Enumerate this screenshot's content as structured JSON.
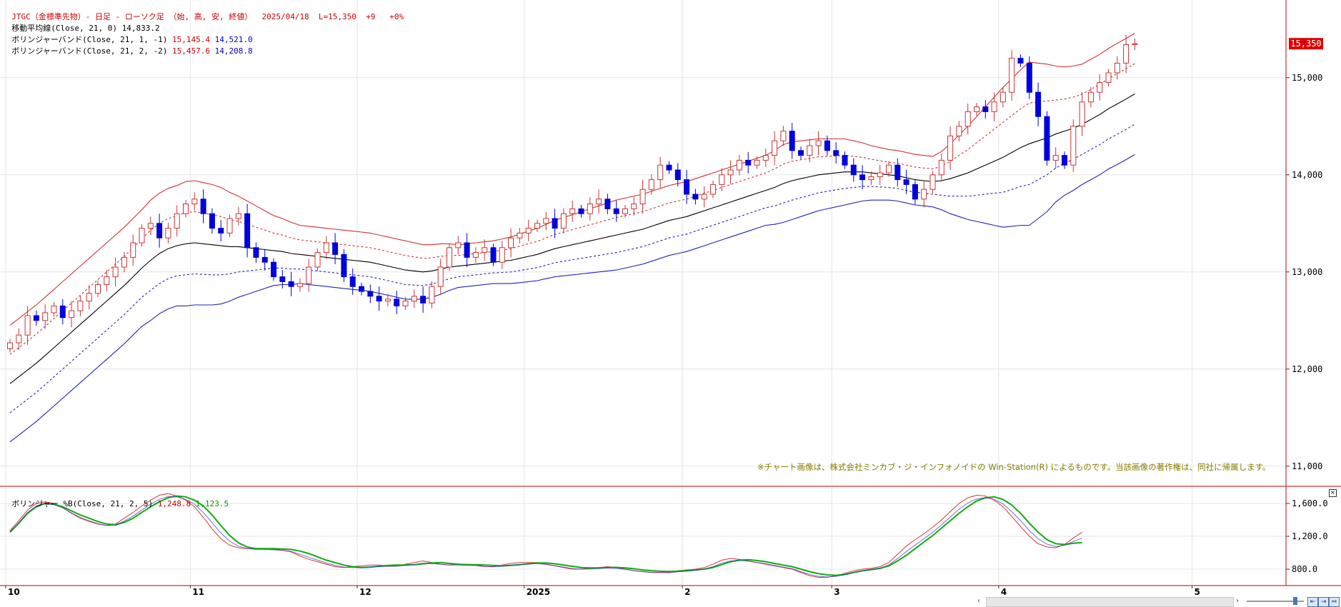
{
  "header": {
    "symbol_line": "JTGC（金標準先物）- 日足 - ローソク足 （始, 高, 安, 終値）  2025/04/18  L=15,350  +9   +0%",
    "ma_label": "移動平均線(Close, 21, 0)",
    "ma_value": "14,833.2",
    "bb1_label": "ボリンジャーバンド(Close, 21, 1, -1)",
    "bb1_upper": "15,145.4",
    "bb1_lower": "14,521.0",
    "bb2_label": "ボリンジャーバンド(Close, 21, 2, -2)",
    "bb2_upper": "15,457.6",
    "bb2_lower": "14,208.8"
  },
  "sub_header": {
    "label": "ボリンジャー %B(Close, 21, 2, 5)",
    "value1": "1,248.8",
    "value2": "1,123.5"
  },
  "notice": "※チャート画像は、株式会社ミンカブ・ジ・インフォノイドの Win-Station(R) によるものです。当該画像の著作権は、同社に帰属します。",
  "last_price_tag": "15,350",
  "colors": {
    "up": "#cc3333",
    "down": "#0000dd",
    "ma": "#000000",
    "band_upper": "#cc3333",
    "band_lower": "#2222bb",
    "sub_red": "#dd3333",
    "sub_blue": "#3333bb",
    "sub_green": "#11aa11",
    "price_tag_bg": "#dd0000"
  },
  "chart_data": [
    {
      "type": "candlestick",
      "title": "",
      "ylim": [
        10800,
        15800
      ],
      "yticks": [
        11000,
        12000,
        13000,
        14000,
        15000
      ],
      "ytick_labels": [
        "11,000",
        "12,000",
        "13,000",
        "14,000",
        "15,000"
      ],
      "x_labels": [
        {
          "label": "10",
          "idx": 0
        },
        {
          "label": "11",
          "idx": 21
        },
        {
          "label": "12",
          "idx": 40
        },
        {
          "label": "2025",
          "idx": 59
        },
        {
          "label": "2",
          "idx": 77
        },
        {
          "label": "3",
          "idx": 94
        },
        {
          "label": "4",
          "idx": 113
        },
        {
          "label": "5",
          "idx": 135
        }
      ],
      "closes": [
        12270,
        12350,
        12550,
        12500,
        12580,
        12650,
        12530,
        12600,
        12700,
        12780,
        12870,
        12950,
        13050,
        13150,
        13300,
        13450,
        13500,
        13350,
        13450,
        13600,
        13700,
        13750,
        13600,
        13450,
        13400,
        13550,
        13600,
        13250,
        13150,
        13100,
        12950,
        12900,
        12850,
        12880,
        13050,
        13200,
        13300,
        13180,
        12950,
        12850,
        12800,
        12750,
        12700,
        12720,
        12650,
        12700,
        12750,
        12680,
        12850,
        13050,
        13250,
        13300,
        13150,
        13200,
        13250,
        13100,
        13250,
        13350,
        13400,
        13450,
        13500,
        13550,
        13450,
        13600,
        13650,
        13600,
        13700,
        13750,
        13650,
        13600,
        13650,
        13700,
        13850,
        13950,
        14100,
        14050,
        13950,
        13800,
        13750,
        13800,
        13900,
        14000,
        14050,
        14150,
        14100,
        14150,
        14200,
        14350,
        14450,
        14250,
        14200,
        14300,
        14350,
        14250,
        14200,
        14100,
        14000,
        13950,
        13980,
        14020,
        14100,
        13950,
        13900,
        13750,
        13850,
        14000,
        14150,
        14400,
        14500,
        14650,
        14700,
        14650,
        14750,
        14850,
        15200,
        15150,
        14850,
        14600,
        14150,
        14200,
        14100,
        14500,
        14750,
        14850,
        14950,
        15050,
        15150,
        15341,
        15350
      ],
      "band_mid": [
        11850,
        11920,
        11990,
        12060,
        12140,
        12220,
        12300,
        12380,
        12460,
        12540,
        12620,
        12700,
        12780,
        12860,
        12950,
        13040,
        13120,
        13190,
        13240,
        13270,
        13290,
        13300,
        13290,
        13280,
        13270,
        13260,
        13260,
        13250,
        13240,
        13230,
        13220,
        13210,
        13190,
        13180,
        13170,
        13160,
        13150,
        13140,
        13130,
        13120,
        13110,
        13100,
        13080,
        13060,
        13040,
        13020,
        13010,
        13000,
        13010,
        13030,
        13050,
        13060,
        13070,
        13080,
        13090,
        13100,
        13110,
        13120,
        13140,
        13160,
        13180,
        13210,
        13240,
        13260,
        13280,
        13300,
        13320,
        13340,
        13360,
        13380,
        13400,
        13420,
        13440,
        13470,
        13500,
        13530,
        13550,
        13570,
        13600,
        13630,
        13660,
        13690,
        13720,
        13750,
        13780,
        13810,
        13840,
        13870,
        13910,
        13940,
        13960,
        13980,
        14000,
        14010,
        14020,
        14030,
        14030,
        14030,
        14020,
        14010,
        14000,
        13990,
        13970,
        13950,
        13940,
        13930,
        13940,
        13960,
        13990,
        14020,
        14060,
        14100,
        14140,
        14180,
        14230,
        14280,
        14320,
        14350,
        14380,
        14420,
        14450,
        14480,
        14520,
        14570,
        14620,
        14680,
        14730,
        14780,
        14833
      ],
      "band_sd": [
        300,
        300,
        300,
        300,
        300,
        300,
        300,
        300,
        300,
        300,
        300,
        300,
        300,
        300,
        300,
        300,
        310,
        310,
        310,
        310,
        320,
        320,
        315,
        310,
        300,
        280,
        260,
        240,
        220,
        200,
        180,
        170,
        160,
        150,
        150,
        150,
        150,
        150,
        150,
        150,
        150,
        150,
        150,
        150,
        150,
        150,
        145,
        140,
        135,
        130,
        120,
        110,
        110,
        110,
        110,
        110,
        115,
        120,
        125,
        130,
        135,
        140,
        145,
        150,
        155,
        160,
        165,
        170,
        175,
        180,
        180,
        180,
        180,
        180,
        180,
        180,
        180,
        180,
        180,
        180,
        180,
        180,
        180,
        180,
        180,
        180,
        180,
        190,
        200,
        200,
        195,
        190,
        185,
        180,
        175,
        170,
        160,
        150,
        140,
        135,
        130,
        130,
        130,
        130,
        130,
        130,
        150,
        180,
        210,
        240,
        270,
        300,
        330,
        360,
        380,
        400,
        420,
        400,
        380,
        350,
        330,
        320,
        310,
        310,
        310,
        310,
        312,
        312,
        312
      ]
    },
    {
      "type": "line",
      "title": "",
      "ylim": [
        600,
        1800
      ],
      "yticks": [
        800,
        1200,
        1600
      ],
      "ytick_labels": [
        "800.0",
        "1,200.0",
        "1,600.0"
      ],
      "series": [
        {
          "values": [
            1270,
            1390,
            1520,
            1600,
            1620,
            1600,
            1550,
            1480,
            1420,
            1380,
            1350,
            1330,
            1350,
            1420,
            1490,
            1570,
            1640,
            1700,
            1720,
            1690,
            1640,
            1560,
            1430,
            1290,
            1170,
            1090,
            1060,
            1050,
            1050,
            1050,
            1040,
            1030,
            1010,
            960,
            920,
            890,
            860,
            830,
            820,
            830,
            840,
            850,
            850,
            840,
            840,
            860,
            880,
            900,
            880,
            860,
            850,
            860,
            860,
            850,
            830,
            830,
            850,
            870,
            880,
            880,
            880,
            860,
            840,
            820,
            800,
            800,
            810,
            820,
            830,
            820,
            800,
            780,
            770,
            760,
            760,
            760,
            780,
            790,
            800,
            820,
            860,
            910,
            930,
            920,
            900,
            880,
            860,
            840,
            820,
            800,
            760,
            720,
            700,
            700,
            720,
            750,
            780,
            800,
            810,
            830,
            880,
            980,
            1080,
            1160,
            1230,
            1310,
            1400,
            1500,
            1600,
            1670,
            1700,
            1690,
            1640,
            1560,
            1440,
            1320,
            1200,
            1110,
            1070,
            1060,
            1100,
            1180,
            1249
          ]
        },
        {
          "values": [
            1250,
            1360,
            1480,
            1560,
            1600,
            1590,
            1560,
            1510,
            1460,
            1420,
            1380,
            1350,
            1340,
            1370,
            1420,
            1490,
            1560,
            1620,
            1670,
            1690,
            1680,
            1640,
            1570,
            1460,
            1330,
            1210,
            1120,
            1070,
            1050,
            1050,
            1050,
            1045,
            1040,
            1020,
            990,
            950,
            910,
            880,
            850,
            830,
            820,
            825,
            835,
            845,
            850,
            850,
            855,
            865,
            875,
            880,
            870,
            860,
            855,
            855,
            850,
            845,
            840,
            845,
            855,
            865,
            875,
            875,
            865,
            850,
            835,
            820,
            815,
            815,
            820,
            822,
            815,
            805,
            790,
            780,
            775,
            772,
            775,
            780,
            790,
            800,
            820,
            855,
            890,
            910,
            915,
            905,
            890,
            870,
            850,
            830,
            800,
            770,
            745,
            730,
            725,
            735,
            760,
            780,
            795,
            810,
            840,
            900,
            970,
            1050,
            1130,
            1210,
            1300,
            1390,
            1480,
            1560,
            1630,
            1670,
            1680,
            1650,
            1580,
            1480,
            1360,
            1250,
            1160,
            1110,
            1100,
            1115,
            1124
          ]
        }
      ]
    }
  ]
}
